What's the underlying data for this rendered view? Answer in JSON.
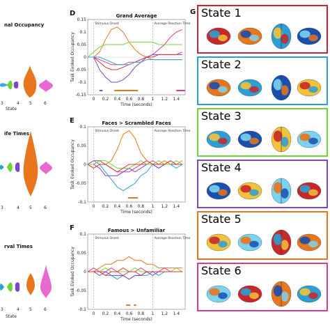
{
  "left_column": {
    "titles": [
      "nal Occupancy",
      "ife Times",
      "rval Times"
    ],
    "xlabel": "State",
    "ticks": [
      "3",
      "4",
      "5",
      "6"
    ]
  },
  "panel_d": {
    "letter": "D",
    "chart_data": {
      "type": "line",
      "title": "Grand Average",
      "xlabel": "Time (seconds)",
      "ylabel": "Task Evoked Occupancy",
      "xlim": [
        -0.1,
        1.55
      ],
      "ylim": [
        -0.15,
        0.15
      ],
      "xticks": [
        "0",
        "0.2",
        "0.4",
        "0.6",
        "0.8",
        "1",
        "1.2",
        "1.4"
      ],
      "yticks": [
        "0.15",
        "0.1",
        "0.05",
        "0",
        "-0.05",
        "-0.1",
        "-0.15"
      ],
      "annotations": [
        "Stimulus Onset",
        "Average Reaction Time"
      ],
      "x": [
        -0.1,
        0.0,
        0.1,
        0.2,
        0.3,
        0.4,
        0.5,
        0.6,
        0.7,
        0.8,
        0.9,
        1.0,
        1.1,
        1.2,
        1.3,
        1.4,
        1.5
      ],
      "series": [
        {
          "color": "#e8761c",
          "values": [
            0.0,
            0.0,
            0.02,
            0.07,
            0.11,
            0.12,
            0.1,
            0.06,
            0.03,
            0.01,
            0.0,
            -0.01,
            -0.01,
            -0.01,
            -0.01,
            -0.01,
            -0.01
          ]
        },
        {
          "color": "#d63c8f",
          "values": [
            0.0,
            0.0,
            -0.01,
            -0.02,
            -0.03,
            -0.03,
            -0.03,
            -0.02,
            -0.02,
            -0.01,
            0.0,
            0.01,
            0.03,
            0.05,
            0.08,
            0.1,
            0.11
          ]
        },
        {
          "color": "#6fd43a",
          "values": [
            0.0,
            0.02,
            0.04,
            0.05,
            0.05,
            0.05,
            0.05,
            0.06,
            0.06,
            0.06,
            0.06,
            0.06,
            0.05,
            0.05,
            0.05,
            0.05,
            0.05
          ]
        },
        {
          "color": "#7b46c8",
          "values": [
            0.0,
            0.0,
            -0.05,
            -0.08,
            -0.1,
            -0.1,
            -0.09,
            -0.07,
            -0.04,
            -0.02,
            0.0,
            0.01,
            0.01,
            0.01,
            0.01,
            0.01,
            0.01
          ]
        },
        {
          "color": "#e0332e",
          "values": [
            0.0,
            0.0,
            -0.02,
            -0.04,
            -0.05,
            -0.05,
            -0.04,
            -0.03,
            -0.02,
            -0.01,
            0.0,
            0.0,
            0.01,
            0.01,
            0.01,
            0.01,
            0.02
          ]
        },
        {
          "color": "#2a9fd6",
          "values": [
            0.0,
            0.0,
            0.0,
            -0.01,
            -0.02,
            -0.03,
            -0.03,
            -0.03,
            -0.02,
            -0.02,
            -0.01,
            -0.01,
            -0.01,
            -0.01,
            -0.01,
            -0.01,
            -0.01
          ]
        }
      ],
      "significance": [
        {
          "color": "#7b46c8",
          "range": [
            0.1,
            0.15
          ]
        },
        {
          "color": "#e8761c",
          "range": [
            0.35,
            0.75
          ]
        },
        {
          "color": "#d63c8f",
          "range": [
            1.4,
            1.55
          ]
        }
      ]
    }
  },
  "panel_e": {
    "letter": "E",
    "chart_data": {
      "type": "line",
      "title": "Faces > Scrambled Faces",
      "xlabel": "Time (seconds)",
      "ylabel": "Task Evoked Occupancy",
      "xlim": [
        -0.1,
        1.55
      ],
      "ylim": [
        -0.1,
        0.1
      ],
      "xticks": [
        "0",
        "0.2",
        "0.4",
        "0.6",
        "0.8",
        "1",
        "1.2",
        "1.4"
      ],
      "yticks": [
        "0.1",
        "0.05",
        "0",
        "-0.05",
        "-0.1"
      ],
      "annotations": [
        "Stimulus Onset",
        "Average Reaction Time"
      ],
      "x": [
        -0.1,
        0.0,
        0.1,
        0.2,
        0.3,
        0.4,
        0.5,
        0.6,
        0.7,
        0.8,
        0.9,
        1.0,
        1.1,
        1.2,
        1.3,
        1.4,
        1.5
      ],
      "series": [
        {
          "color": "#e8761c",
          "values": [
            0.0,
            0.0,
            0.01,
            0.0,
            0.01,
            0.04,
            0.08,
            0.09,
            0.07,
            0.03,
            0.01,
            0.0,
            0.0,
            0.01,
            0.0,
            0.0,
            0.01
          ]
        },
        {
          "color": "#2a9fd6",
          "values": [
            0.0,
            0.01,
            0.0,
            -0.02,
            -0.04,
            -0.06,
            -0.07,
            -0.06,
            -0.05,
            -0.03,
            -0.02,
            0.0,
            -0.01,
            0.0,
            0.0,
            -0.01,
            0.0
          ]
        },
        {
          "color": "#7b46c8",
          "values": [
            0.0,
            0.0,
            -0.01,
            -0.03,
            -0.03,
            -0.03,
            -0.02,
            -0.01,
            -0.02,
            -0.01,
            0.0,
            0.0,
            -0.01,
            0.0,
            0.0,
            0.0,
            0.0
          ]
        },
        {
          "color": "#d63c8f",
          "values": [
            0.0,
            0.01,
            0.01,
            0.0,
            -0.01,
            -0.02,
            -0.02,
            -0.02,
            -0.01,
            0.0,
            0.0,
            0.01,
            0.0,
            0.0,
            0.01,
            0.0,
            0.0
          ]
        },
        {
          "color": "#6fd43a",
          "values": [
            0.0,
            0.0,
            0.01,
            0.01,
            0.0,
            -0.01,
            -0.01,
            -0.01,
            0.0,
            0.01,
            0.0,
            0.0,
            0.01,
            0.0,
            0.0,
            0.01,
            0.0
          ]
        },
        {
          "color": "#e0332e",
          "values": [
            0.0,
            -0.01,
            0.0,
            0.0,
            -0.01,
            -0.02,
            -0.01,
            0.0,
            0.0,
            0.0,
            0.01,
            0.0,
            0.0,
            0.0,
            0.01,
            0.0,
            0.0
          ]
        }
      ],
      "significance": [
        {
          "color": "#e8761c",
          "range": [
            0.58,
            0.75
          ]
        }
      ]
    }
  },
  "panel_f": {
    "letter": "F",
    "chart_data": {
      "type": "line",
      "title": "Famous > Unfamiliar",
      "xlabel": "Time (seconds)",
      "ylabel": "Task Evoked Occupancy",
      "xlim": [
        -0.1,
        1.55
      ],
      "ylim": [
        -0.1,
        0.1
      ],
      "xticks": [
        "0",
        "0.2",
        "0.4",
        "0.6",
        "0.8",
        "1",
        "1.2",
        "1.4"
      ],
      "yticks": [
        "0.1",
        "0.05",
        "0",
        "-0.05",
        "-0.1"
      ],
      "annotations": [
        "Stimulus Onset",
        "Average Reaction Time"
      ],
      "x": [
        -0.1,
        0.0,
        0.1,
        0.2,
        0.3,
        0.4,
        0.5,
        0.6,
        0.7,
        0.8,
        0.9,
        1.0,
        1.1,
        1.2,
        1.3,
        1.4,
        1.5
      ],
      "series": [
        {
          "color": "#e8761c",
          "values": [
            0.0,
            0.0,
            0.01,
            0.02,
            0.02,
            0.03,
            0.03,
            0.04,
            0.03,
            0.03,
            0.02,
            0.02,
            0.01,
            0.01,
            0.01,
            0.01,
            0.01
          ]
        },
        {
          "color": "#2a9fd6",
          "values": [
            0.0,
            0.0,
            0.0,
            -0.01,
            -0.01,
            -0.02,
            -0.01,
            -0.02,
            -0.01,
            -0.01,
            -0.01,
            0.0,
            -0.01,
            0.0,
            0.0,
            0.0,
            0.0
          ]
        },
        {
          "color": "#7b46c8",
          "values": [
            0.0,
            0.0,
            -0.01,
            0.0,
            -0.01,
            -0.01,
            -0.01,
            -0.02,
            -0.01,
            -0.01,
            0.0,
            -0.01,
            0.0,
            0.0,
            0.0,
            0.0,
            0.0
          ]
        },
        {
          "color": "#d63c8f",
          "values": [
            0.0,
            0.01,
            0.0,
            0.0,
            0.01,
            0.0,
            -0.01,
            0.0,
            0.0,
            0.01,
            0.0,
            0.0,
            0.0,
            0.01,
            0.0,
            0.0,
            0.0
          ]
        },
        {
          "color": "#6fd43a",
          "values": [
            0.0,
            0.0,
            0.0,
            0.01,
            0.0,
            0.0,
            0.0,
            0.0,
            0.01,
            0.0,
            0.0,
            0.0,
            0.0,
            0.0,
            0.0,
            0.01,
            0.0
          ]
        },
        {
          "color": "#e0332e",
          "values": [
            0.0,
            0.0,
            0.0,
            -0.01,
            0.0,
            0.0,
            0.01,
            0.0,
            0.0,
            -0.01,
            0.0,
            0.0,
            0.0,
            0.0,
            0.0,
            0.0,
            0.0
          ]
        }
      ],
      "significance": [
        {
          "color": "#e8761c",
          "range": [
            0.55,
            0.62
          ]
        },
        {
          "color": "#e8761c",
          "range": [
            0.68,
            0.72
          ]
        }
      ]
    }
  },
  "panel_g": {
    "letter": "G",
    "states": [
      {
        "label": "State 1",
        "color": "#c8282a"
      },
      {
        "label": "State 2",
        "color": "#2a9fd6"
      },
      {
        "label": "State 3",
        "color": "#6fd43a"
      },
      {
        "label": "State 4",
        "color": "#7b46c8"
      },
      {
        "label": "State 5",
        "color": "#e8761c"
      },
      {
        "label": "State 6",
        "color": "#d63c8f"
      }
    ]
  }
}
